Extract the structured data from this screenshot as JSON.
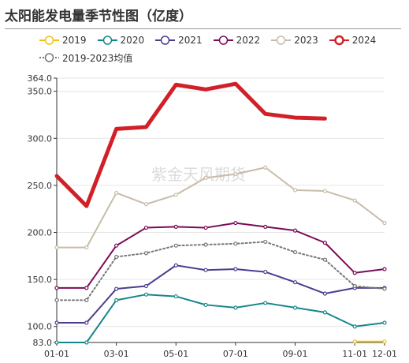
{
  "chart_data": {
    "type": "line",
    "title": "太阳能发电量季节性图（亿度）",
    "watermark": "紫金天风期货",
    "x": [
      "01-01",
      "02-01",
      "03-01",
      "04-01",
      "05-01",
      "06-01",
      "07-01",
      "08-01",
      "09-01",
      "10-01",
      "11-01",
      "12-01"
    ],
    "xtick_labels": [
      "01-01",
      "03-01",
      "05-01",
      "07-01",
      "09-01",
      "11-01",
      "12-01"
    ],
    "ylim": [
      83.0,
      364.0
    ],
    "ytick_labels": [
      "83.0",
      "100.0",
      "150.0",
      "200.0",
      "250.0",
      "300.0",
      "350.0",
      "364.0"
    ],
    "grid": "horizontal",
    "legend_position": "top",
    "series": [
      {
        "name": "2019",
        "color": "#f2c30f",
        "style": "solid",
        "values": [
          null,
          null,
          null,
          null,
          null,
          null,
          null,
          null,
          null,
          null,
          84,
          84
        ]
      },
      {
        "name": "2020",
        "color": "#17868a",
        "style": "solid",
        "values": [
          83,
          83,
          128,
          134,
          132,
          123,
          120,
          125,
          120,
          115,
          100,
          104
        ]
      },
      {
        "name": "2021",
        "color": "#4e3c90",
        "style": "solid",
        "values": [
          104,
          104,
          140,
          143,
          165,
          160,
          161,
          158,
          147,
          135,
          141,
          141
        ]
      },
      {
        "name": "2022",
        "color": "#7b0c57",
        "style": "solid",
        "values": [
          141,
          141,
          186,
          205,
          206,
          205,
          210,
          206,
          202,
          189,
          157,
          161
        ]
      },
      {
        "name": "2023",
        "color": "#c8bca9",
        "style": "solid",
        "values": [
          184,
          184,
          242,
          230,
          240,
          258,
          262,
          269,
          245,
          244,
          234,
          210
        ]
      },
      {
        "name": "2024",
        "color": "#d12028",
        "style": "solid",
        "values": [
          260,
          228,
          310,
          312,
          357,
          352,
          358,
          326,
          322,
          321,
          null,
          null
        ]
      },
      {
        "name": "2019-2023均值",
        "color": "#777777",
        "style": "dotted",
        "values": [
          128,
          128,
          174,
          178,
          186,
          187,
          188,
          190,
          179,
          171,
          143,
          140
        ]
      }
    ]
  }
}
